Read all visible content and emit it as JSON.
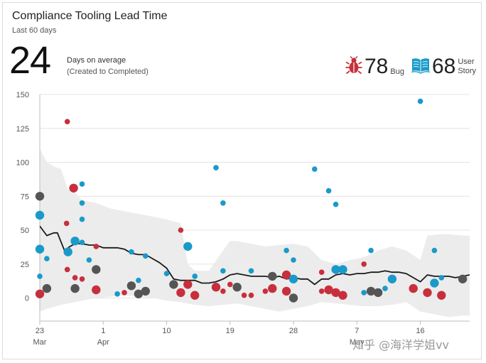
{
  "header": {
    "title": "Compliance Tooling Lead Time",
    "subtitle": "Last 60 days"
  },
  "metric": {
    "value": "24",
    "label": "Days on average",
    "sublabel": "(Created to Completed)"
  },
  "legend": {
    "bug": {
      "count": "78",
      "label": "Bug",
      "color": "#c72f3c",
      "icon": "bug-icon"
    },
    "story": {
      "count": "68",
      "label": "User Story",
      "label_line1": "User",
      "label_line2": "Story",
      "color": "#1a9ac9",
      "icon": "book-icon"
    }
  },
  "watermark": "知乎 @海洋学姐vv",
  "colors": {
    "bug": "#c72f3c",
    "story": "#1a9ac9",
    "multiple": "#555555",
    "band": "#ececec",
    "trend": "#1a1a1a",
    "grid": "#e4e4e4"
  },
  "chart_data": {
    "type": "scatter",
    "ylim": [
      -20,
      150
    ],
    "yticks": [
      0,
      25,
      50,
      75,
      100,
      125,
      150
    ],
    "xlim": [
      0,
      61
    ],
    "xticks": [
      {
        "x": 0,
        "label": "23",
        "month": "Mar"
      },
      {
        "x": 9,
        "label": "1",
        "month": "Apr"
      },
      {
        "x": 18,
        "label": "10",
        "month": ""
      },
      {
        "x": 27,
        "label": "19",
        "month": ""
      },
      {
        "x": 36,
        "label": "28",
        "month": ""
      },
      {
        "x": 45,
        "label": "7",
        "month": "May"
      },
      {
        "x": 54,
        "label": "16",
        "month": ""
      }
    ],
    "trend": [
      [
        0,
        53
      ],
      [
        1,
        46
      ],
      [
        2,
        48
      ],
      [
        2.5,
        48
      ],
      [
        3.5,
        35
      ],
      [
        4.3,
        38
      ],
      [
        5,
        40
      ],
      [
        6,
        40
      ],
      [
        7,
        39
      ],
      [
        8,
        39
      ],
      [
        9,
        37
      ],
      [
        10,
        37
      ],
      [
        11,
        37
      ],
      [
        12,
        36
      ],
      [
        13,
        33
      ],
      [
        14,
        32
      ],
      [
        15,
        32
      ],
      [
        16,
        29
      ],
      [
        17,
        26
      ],
      [
        18,
        22
      ],
      [
        19,
        14
      ],
      [
        20,
        13
      ],
      [
        21,
        13
      ],
      [
        22,
        13
      ],
      [
        23,
        11
      ],
      [
        24,
        11
      ],
      [
        25,
        12
      ],
      [
        26,
        14
      ],
      [
        27,
        17
      ],
      [
        28,
        18
      ],
      [
        29,
        17
      ],
      [
        30,
        16
      ],
      [
        31,
        16
      ],
      [
        32,
        16
      ],
      [
        33,
        15
      ],
      [
        34,
        16
      ],
      [
        35,
        14
      ],
      [
        36,
        15
      ],
      [
        37,
        14
      ],
      [
        38,
        14
      ],
      [
        39,
        10
      ],
      [
        40,
        14
      ],
      [
        41,
        14
      ],
      [
        42,
        17
      ],
      [
        43,
        18
      ],
      [
        44,
        17
      ],
      [
        45,
        18
      ],
      [
        46,
        18
      ],
      [
        47,
        19
      ],
      [
        48,
        19
      ],
      [
        49,
        20
      ],
      [
        50,
        19
      ],
      [
        51,
        19
      ],
      [
        52,
        18
      ],
      [
        53,
        15
      ],
      [
        54,
        12
      ],
      [
        55,
        17
      ],
      [
        56,
        16
      ],
      [
        57,
        16
      ],
      [
        58,
        16
      ],
      [
        59,
        15
      ],
      [
        60,
        16
      ],
      [
        61,
        17
      ]
    ],
    "band_upper": [
      [
        0,
        110
      ],
      [
        1,
        100
      ],
      [
        2,
        97
      ],
      [
        3,
        95
      ],
      [
        4,
        80
      ],
      [
        5,
        78
      ],
      [
        6,
        72
      ],
      [
        8,
        70
      ],
      [
        10,
        66
      ],
      [
        12,
        64
      ],
      [
        14,
        62
      ],
      [
        16,
        60
      ],
      [
        18,
        58
      ],
      [
        20,
        55
      ],
      [
        21,
        25
      ],
      [
        22,
        20
      ],
      [
        24,
        20
      ],
      [
        26,
        35
      ],
      [
        27,
        42
      ],
      [
        28,
        42
      ],
      [
        30,
        40
      ],
      [
        32,
        38
      ],
      [
        34,
        39
      ],
      [
        36,
        40
      ],
      [
        38,
        38
      ],
      [
        40,
        28
      ],
      [
        42,
        25
      ],
      [
        44,
        28
      ],
      [
        46,
        30
      ],
      [
        48,
        35
      ],
      [
        50,
        38
      ],
      [
        52,
        35
      ],
      [
        54,
        28
      ],
      [
        55,
        46
      ],
      [
        57,
        47
      ],
      [
        58,
        47
      ],
      [
        60,
        46
      ],
      [
        61,
        46
      ]
    ],
    "band_lower": [
      [
        0,
        -10
      ],
      [
        1,
        -8
      ],
      [
        3,
        -5
      ],
      [
        5,
        -3
      ],
      [
        8,
        0
      ],
      [
        10,
        1
      ],
      [
        12,
        2
      ],
      [
        14,
        1
      ],
      [
        16,
        0
      ],
      [
        18,
        -2
      ],
      [
        20,
        -3
      ],
      [
        22,
        -5
      ],
      [
        24,
        -6
      ],
      [
        26,
        -5
      ],
      [
        28,
        -4
      ],
      [
        30,
        -6
      ],
      [
        32,
        -8
      ],
      [
        34,
        -10
      ],
      [
        36,
        -8
      ],
      [
        38,
        -6
      ],
      [
        40,
        -3
      ],
      [
        42,
        -4
      ],
      [
        44,
        -5
      ],
      [
        46,
        -6
      ],
      [
        48,
        -6
      ],
      [
        50,
        -5
      ],
      [
        52,
        -3
      ],
      [
        54,
        -10
      ],
      [
        56,
        -12
      ],
      [
        58,
        -14
      ],
      [
        60,
        -13
      ],
      [
        61,
        -13
      ]
    ],
    "series": [
      {
        "name": "Bug",
        "kind": "bug",
        "points": [
          [
            0,
            3,
            2
          ],
          [
            3.9,
            130,
            1
          ],
          [
            4.8,
            81,
            2
          ],
          [
            3.8,
            55,
            1
          ],
          [
            3.9,
            21,
            1
          ],
          [
            5.0,
            15,
            1
          ],
          [
            6.0,
            14,
            1
          ],
          [
            8.0,
            38,
            1
          ],
          [
            8.0,
            6,
            2
          ],
          [
            12.0,
            4,
            1
          ],
          [
            20.0,
            50,
            1
          ],
          [
            20.0,
            4,
            2
          ],
          [
            21.0,
            10,
            2
          ],
          [
            22.0,
            2,
            2
          ],
          [
            25.0,
            8,
            2
          ],
          [
            26.0,
            5,
            1
          ],
          [
            27.0,
            10,
            1
          ],
          [
            29.0,
            2,
            1
          ],
          [
            30.0,
            2,
            1
          ],
          [
            32.0,
            5,
            1
          ],
          [
            33.0,
            7,
            2
          ],
          [
            35.0,
            17,
            2
          ],
          [
            35.0,
            5,
            2
          ],
          [
            40.0,
            19,
            1
          ],
          [
            40.0,
            5,
            1
          ],
          [
            41.0,
            6,
            2
          ],
          [
            42.0,
            4,
            2
          ],
          [
            43.0,
            2,
            2
          ],
          [
            46.0,
            25,
            1
          ],
          [
            53.0,
            7,
            2
          ],
          [
            55.0,
            4,
            2
          ],
          [
            57.0,
            2,
            2
          ]
        ]
      },
      {
        "name": "User Story",
        "kind": "story",
        "points": [
          [
            0,
            61,
            2
          ],
          [
            0,
            36,
            2
          ],
          [
            0,
            16,
            1
          ],
          [
            1,
            29,
            1
          ],
          [
            4,
            34,
            2
          ],
          [
            5,
            42,
            2
          ],
          [
            6,
            84,
            1
          ],
          [
            6,
            70,
            1
          ],
          [
            6,
            58,
            1
          ],
          [
            6,
            41,
            1
          ],
          [
            7,
            28,
            1
          ],
          [
            11,
            3,
            1
          ],
          [
            13,
            34,
            1
          ],
          [
            14,
            13,
            1
          ],
          [
            15,
            31,
            1
          ],
          [
            18,
            18,
            1
          ],
          [
            21,
            38,
            2
          ],
          [
            22,
            16,
            1
          ],
          [
            25,
            96,
            1
          ],
          [
            26,
            70,
            1
          ],
          [
            26,
            20,
            1
          ],
          [
            30,
            20,
            1
          ],
          [
            35,
            35,
            1
          ],
          [
            36,
            28,
            1
          ],
          [
            36,
            14,
            2
          ],
          [
            39,
            95,
            1
          ],
          [
            41,
            79,
            1
          ],
          [
            42,
            69,
            1
          ],
          [
            42,
            21,
            2
          ],
          [
            43,
            21,
            2
          ],
          [
            46,
            4,
            1
          ],
          [
            47,
            35,
            1
          ],
          [
            49,
            7,
            1
          ],
          [
            50,
            14,
            2
          ],
          [
            54,
            145,
            1
          ],
          [
            56,
            35,
            1
          ],
          [
            56,
            11,
            2
          ],
          [
            57,
            15,
            1
          ]
        ]
      },
      {
        "name": "",
        "kind": "multiple",
        "points": [
          [
            0,
            75,
            2
          ],
          [
            1,
            7,
            2
          ],
          [
            5,
            7,
            2
          ],
          [
            8,
            21,
            2
          ],
          [
            13,
            9,
            2
          ],
          [
            14,
            3,
            2
          ],
          [
            15,
            5,
            2
          ],
          [
            19,
            10,
            2
          ],
          [
            28,
            8,
            2
          ],
          [
            33,
            16,
            2
          ],
          [
            36,
            0,
            2
          ],
          [
            47,
            5,
            2
          ],
          [
            48,
            4,
            2
          ],
          [
            60,
            14,
            2
          ]
        ]
      }
    ]
  }
}
